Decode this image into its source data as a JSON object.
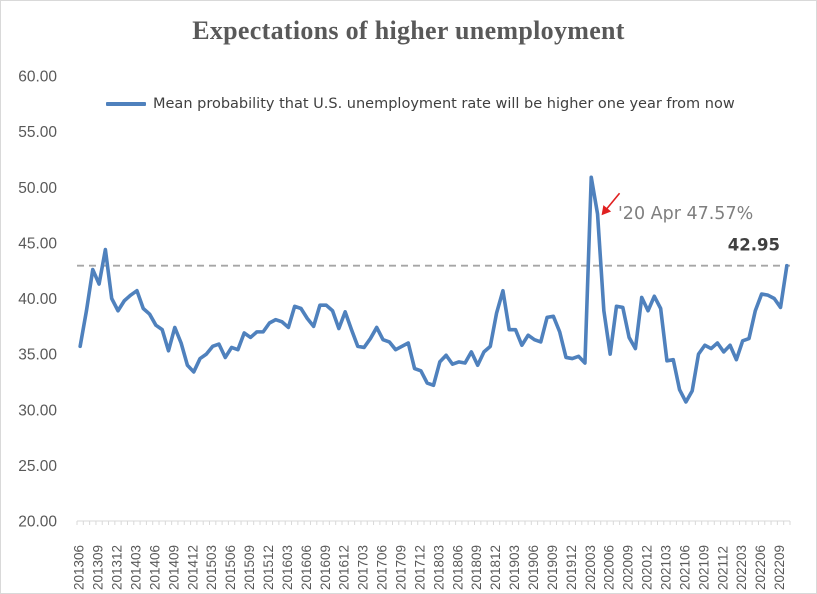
{
  "chart_data": {
    "type": "line",
    "title": "Expectations of higher unemployment",
    "xlabel": "",
    "ylabel": "",
    "ylim": [
      20,
      60
    ],
    "yticks": [
      "20.00",
      "25.00",
      "30.00",
      "35.00",
      "40.00",
      "45.00",
      "50.00",
      "55.00",
      "60.00"
    ],
    "grid": false,
    "legend_position": "top",
    "x_tick_labels": [
      "201306",
      "201309",
      "201312",
      "201403",
      "201406",
      "201409",
      "201412",
      "201503",
      "201506",
      "201509",
      "201512",
      "201603",
      "201606",
      "201609",
      "201612",
      "201703",
      "201706",
      "201709",
      "201712",
      "201803",
      "201806",
      "201809",
      "201812",
      "201903",
      "201906",
      "201909",
      "201912",
      "202003",
      "202006",
      "202009",
      "202012",
      "202103",
      "202106",
      "202109",
      "202112",
      "202203",
      "202206",
      "202209"
    ],
    "x": [
      "201306",
      "201307",
      "201308",
      "201309",
      "201310",
      "201311",
      "201312",
      "201401",
      "201402",
      "201403",
      "201404",
      "201405",
      "201406",
      "201407",
      "201408",
      "201409",
      "201410",
      "201411",
      "201412",
      "201501",
      "201502",
      "201503",
      "201504",
      "201505",
      "201506",
      "201507",
      "201508",
      "201509",
      "201510",
      "201511",
      "201512",
      "201601",
      "201602",
      "201603",
      "201604",
      "201605",
      "201606",
      "201607",
      "201608",
      "201609",
      "201610",
      "201611",
      "201612",
      "201701",
      "201702",
      "201703",
      "201704",
      "201705",
      "201706",
      "201707",
      "201708",
      "201709",
      "201710",
      "201711",
      "201712",
      "201801",
      "201802",
      "201803",
      "201804",
      "201805",
      "201806",
      "201807",
      "201808",
      "201809",
      "201810",
      "201811",
      "201812",
      "201901",
      "201902",
      "201903",
      "201904",
      "201905",
      "201906",
      "201907",
      "201908",
      "201909",
      "201910",
      "201911",
      "201912",
      "202001",
      "202002",
      "202003",
      "202004",
      "202005",
      "202006",
      "202007",
      "202008",
      "202009",
      "202010",
      "202011",
      "202012",
      "202101",
      "202102",
      "202103",
      "202104",
      "202105",
      "202106",
      "202107",
      "202108",
      "202109",
      "202110",
      "202111",
      "202112",
      "202201",
      "202202",
      "202203",
      "202204",
      "202205",
      "202206",
      "202207",
      "202208",
      "202209",
      "202210"
    ],
    "series": [
      {
        "name": "Mean probability that U.S. unemployment rate will be higher one year from now",
        "color": "#4f81bd",
        "values": [
          35.7,
          38.9,
          42.6,
          41.3,
          44.4,
          40.0,
          38.9,
          39.8,
          40.3,
          40.7,
          39.1,
          38.6,
          37.6,
          37.2,
          35.3,
          37.4,
          36.0,
          34.0,
          33.4,
          34.6,
          35.0,
          35.7,
          35.9,
          34.7,
          35.6,
          35.4,
          36.9,
          36.5,
          37.0,
          37.0,
          37.8,
          38.1,
          37.9,
          37.4,
          39.3,
          39.1,
          38.2,
          37.5,
          39.4,
          39.4,
          38.9,
          37.3,
          38.8,
          37.2,
          35.7,
          35.6,
          36.4,
          37.4,
          36.3,
          36.1,
          35.4,
          35.7,
          36.0,
          33.7,
          33.5,
          32.4,
          32.2,
          34.3,
          34.9,
          34.1,
          34.3,
          34.2,
          35.2,
          34.0,
          35.2,
          35.7,
          38.7,
          40.7,
          37.2,
          37.2,
          35.8,
          36.7,
          36.3,
          36.1,
          38.3,
          38.4,
          37.0,
          34.7,
          34.6,
          34.8,
          34.2,
          50.9,
          47.6,
          38.9,
          35.0,
          39.3,
          39.2,
          36.5,
          35.5,
          40.1,
          38.9,
          40.2,
          39.1,
          34.4,
          34.5,
          31.8,
          30.7,
          31.7,
          35.0,
          35.8,
          35.5,
          36.0,
          35.2,
          35.8,
          34.5,
          36.2,
          36.4,
          38.9,
          40.4,
          40.3,
          40.0,
          39.2,
          42.95
        ]
      }
    ],
    "annotations": {
      "point_label": "'20 Apr 47.57%",
      "point_x": "202004",
      "point_y": 47.57,
      "reference_line_value": 42.95,
      "reference_line_label": "42.95",
      "reference_line_color": "#a6a6a6",
      "arrow_color": "#e02020"
    }
  }
}
